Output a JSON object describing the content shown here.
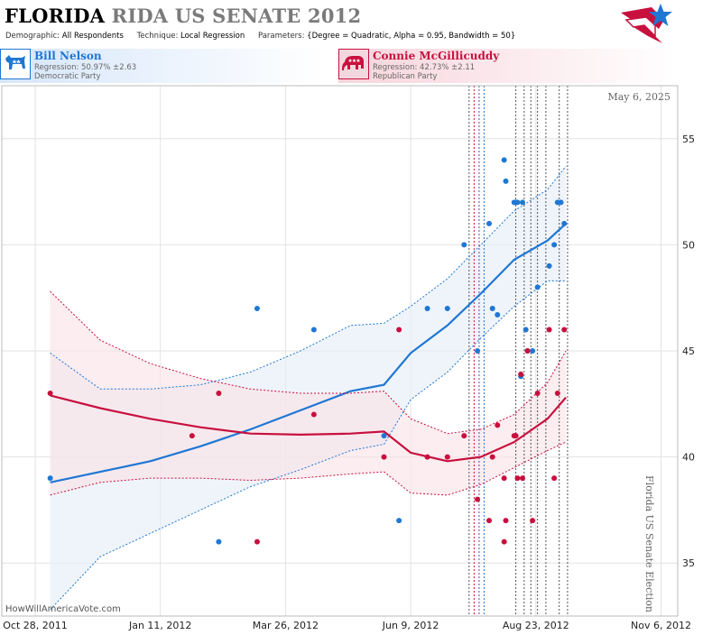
{
  "header": {
    "state": "FLORIDA",
    "race": "RIDA US SENATE 2012",
    "params": [
      {
        "key": "Demographic:",
        "value": "All Respondents"
      },
      {
        "key": "Technique:",
        "value": "Local Regression"
      },
      {
        "key": "Parameters:",
        "value": "{Degree = Quadratic, Alpha = 0.95, Bandwidth = 50}"
      }
    ]
  },
  "candidates": {
    "dem": {
      "name": "Bill Nelson",
      "regression": "Regression: 50.97% ±2.63",
      "party": "Democratic Party",
      "color": "#1f77d3",
      "icon": "donkey-icon"
    },
    "rep": {
      "name": "Connie McGillicuddy",
      "regression": "Regression: 42.73% ±2.11",
      "party": "Republican Party",
      "color": "#c8103e",
      "icon": "elephant-icon"
    }
  },
  "annotations": {
    "current_date": "May 6, 2025",
    "election_label": "Florida US Senate Election",
    "watermark": "HowWillAmericaVote.com"
  },
  "chart_data": {
    "type": "line",
    "x_ticks": [
      "Oct 28, 2011",
      "Jan 11, 2012",
      "Mar 26, 2012",
      "Jun 9, 2012",
      "Aug 23, 2012",
      "Nov 6, 2012"
    ],
    "y_ticks": [
      35,
      40,
      45,
      50,
      55
    ],
    "xlim": [
      "2011-10-08",
      "2012-11-16"
    ],
    "ylim": [
      32.5,
      57.5
    ],
    "grid": true,
    "series": [
      {
        "name": "Bill Nelson",
        "color": "#1f77d3",
        "band_fill": "#e6eef8",
        "points": [
          [
            "2011-11-06",
            39
          ],
          [
            "2012-02-15",
            36
          ],
          [
            "2012-03-09",
            47
          ],
          [
            "2012-04-12",
            46
          ],
          [
            "2012-05-24",
            41
          ],
          [
            "2012-06-02",
            37
          ],
          [
            "2012-06-19",
            47
          ],
          [
            "2012-07-01",
            47
          ],
          [
            "2012-07-11",
            50
          ],
          [
            "2012-07-19",
            45
          ],
          [
            "2012-07-26",
            51
          ],
          [
            "2012-07-28",
            47
          ],
          [
            "2012-07-31",
            46.7
          ],
          [
            "2012-08-04",
            54
          ],
          [
            "2012-08-05",
            53
          ],
          [
            "2012-08-10",
            52
          ],
          [
            "2012-08-11",
            52
          ],
          [
            "2012-08-12",
            52
          ],
          [
            "2012-08-14",
            43.8
          ],
          [
            "2012-08-15",
            52
          ],
          [
            "2012-08-21",
            45
          ],
          [
            "2012-08-24",
            48
          ],
          [
            "2012-08-31",
            49
          ],
          [
            "2012-09-03",
            50
          ],
          [
            "2012-09-05",
            52
          ],
          [
            "2012-09-07",
            52
          ],
          [
            "2012-09-09",
            51
          ],
          [
            "2012-08-17",
            46
          ],
          [
            "2012-08-18",
            45
          ]
        ],
        "trend": [
          [
            "2011-11-06",
            38.8
          ],
          [
            "2011-12-06",
            39.3
          ],
          [
            "2012-01-05",
            39.8
          ],
          [
            "2012-02-04",
            40.5
          ],
          [
            "2012-03-05",
            41.3
          ],
          [
            "2012-04-04",
            42.2
          ],
          [
            "2012-05-04",
            43.1
          ],
          [
            "2012-05-24",
            43.4
          ],
          [
            "2012-06-09",
            44.9
          ],
          [
            "2012-07-01",
            46.2
          ],
          [
            "2012-07-21",
            47.7
          ],
          [
            "2012-08-10",
            49.3
          ],
          [
            "2012-08-30",
            50.2
          ],
          [
            "2012-09-10",
            51.0
          ]
        ],
        "upper": [
          [
            "2011-11-06",
            44.9
          ],
          [
            "2011-12-06",
            43.2
          ],
          [
            "2012-01-05",
            43.2
          ],
          [
            "2012-02-04",
            43.4
          ],
          [
            "2012-03-05",
            44.0
          ],
          [
            "2012-04-04",
            45.0
          ],
          [
            "2012-05-04",
            46.2
          ],
          [
            "2012-05-24",
            46.3
          ],
          [
            "2012-06-09",
            47.1
          ],
          [
            "2012-07-01",
            48.4
          ],
          [
            "2012-07-21",
            50.0
          ],
          [
            "2012-08-10",
            51.6
          ],
          [
            "2012-08-30",
            52.6
          ],
          [
            "2012-09-10",
            53.7
          ]
        ],
        "lower": [
          [
            "2011-11-06",
            32.8
          ],
          [
            "2011-12-06",
            35.3
          ],
          [
            "2012-01-05",
            36.4
          ],
          [
            "2012-02-04",
            37.5
          ],
          [
            "2012-03-05",
            38.6
          ],
          [
            "2012-04-04",
            39.4
          ],
          [
            "2012-05-04",
            40.3
          ],
          [
            "2012-05-24",
            40.6
          ],
          [
            "2012-06-09",
            42.7
          ],
          [
            "2012-07-01",
            44.0
          ],
          [
            "2012-07-21",
            45.6
          ],
          [
            "2012-08-10",
            47.1
          ],
          [
            "2012-08-30",
            48.3
          ],
          [
            "2012-09-10",
            48.3
          ]
        ]
      },
      {
        "name": "Connie McGillicuddy",
        "color": "#c8103e",
        "band_fill": "#f9e3e8",
        "points": [
          [
            "2011-11-06",
            43
          ],
          [
            "2012-01-30",
            41
          ],
          [
            "2012-02-15",
            43
          ],
          [
            "2012-03-09",
            36
          ],
          [
            "2012-04-12",
            42
          ],
          [
            "2012-05-24",
            40
          ],
          [
            "2012-06-02",
            46
          ],
          [
            "2012-06-19",
            40
          ],
          [
            "2012-07-01",
            40
          ],
          [
            "2012-07-11",
            41
          ],
          [
            "2012-07-19",
            38
          ],
          [
            "2012-07-26",
            37
          ],
          [
            "2012-07-28",
            40
          ],
          [
            "2012-07-31",
            41.5
          ],
          [
            "2012-08-04",
            39
          ],
          [
            "2012-08-05",
            37
          ],
          [
            "2012-08-10",
            41
          ],
          [
            "2012-08-11",
            41
          ],
          [
            "2012-08-12",
            39
          ],
          [
            "2012-08-14",
            43.9
          ],
          [
            "2012-08-15",
            39
          ],
          [
            "2012-08-18",
            45
          ],
          [
            "2012-08-21",
            37
          ],
          [
            "2012-08-24",
            43
          ],
          [
            "2012-08-31",
            46
          ],
          [
            "2012-09-03",
            39
          ],
          [
            "2012-09-05",
            43
          ],
          [
            "2012-09-09",
            46
          ],
          [
            "2012-08-04",
            36
          ]
        ],
        "trend": [
          [
            "2011-11-06",
            42.9
          ],
          [
            "2011-12-06",
            42.3
          ],
          [
            "2012-01-05",
            41.8
          ],
          [
            "2012-02-04",
            41.4
          ],
          [
            "2012-03-05",
            41.1
          ],
          [
            "2012-04-04",
            41.05
          ],
          [
            "2012-05-04",
            41.1
          ],
          [
            "2012-05-24",
            41.2
          ],
          [
            "2012-06-09",
            40.2
          ],
          [
            "2012-07-01",
            39.8
          ],
          [
            "2012-07-21",
            40.0
          ],
          [
            "2012-08-10",
            40.7
          ],
          [
            "2012-08-30",
            41.8
          ],
          [
            "2012-09-10",
            42.8
          ]
        ],
        "upper": [
          [
            "2011-11-06",
            47.8
          ],
          [
            "2011-12-06",
            45.5
          ],
          [
            "2012-01-05",
            44.4
          ],
          [
            "2012-02-04",
            43.7
          ],
          [
            "2012-03-05",
            43.2
          ],
          [
            "2012-04-04",
            43.0
          ],
          [
            "2012-05-04",
            43.0
          ],
          [
            "2012-05-24",
            43.1
          ],
          [
            "2012-06-09",
            41.8
          ],
          [
            "2012-07-01",
            41.1
          ],
          [
            "2012-07-21",
            41.3
          ],
          [
            "2012-08-10",
            42.0
          ],
          [
            "2012-08-30",
            43.5
          ],
          [
            "2012-09-10",
            45.0
          ]
        ],
        "lower": [
          [
            "2011-11-06",
            38.2
          ],
          [
            "2011-12-06",
            38.8
          ],
          [
            "2012-01-05",
            39.0
          ],
          [
            "2012-02-04",
            39.0
          ],
          [
            "2012-03-05",
            38.9
          ],
          [
            "2012-04-04",
            39.0
          ],
          [
            "2012-05-04",
            39.2
          ],
          [
            "2012-05-24",
            39.3
          ],
          [
            "2012-06-09",
            38.3
          ],
          [
            "2012-07-01",
            38.2
          ],
          [
            "2012-07-21",
            38.7
          ],
          [
            "2012-08-10",
            39.5
          ],
          [
            "2012-08-30",
            40.3
          ],
          [
            "2012-09-10",
            40.7
          ]
        ]
      }
    ],
    "vlines": [
      {
        "date": "2012-07-14",
        "color": "#555"
      },
      {
        "date": "2012-07-17",
        "color": "#c8103e"
      },
      {
        "date": "2012-07-20",
        "color": "#5b4bb0"
      },
      {
        "date": "2012-07-23",
        "color": "#1f77d3"
      },
      {
        "date": "2012-08-11",
        "color": "#555"
      },
      {
        "date": "2012-08-16",
        "color": "#555"
      },
      {
        "date": "2012-08-20",
        "color": "#555"
      },
      {
        "date": "2012-08-24",
        "color": "#555"
      },
      {
        "date": "2012-08-29",
        "color": "#555"
      },
      {
        "date": "2012-09-06",
        "color": "#555"
      },
      {
        "date": "2012-09-11",
        "color": "#555"
      }
    ]
  }
}
